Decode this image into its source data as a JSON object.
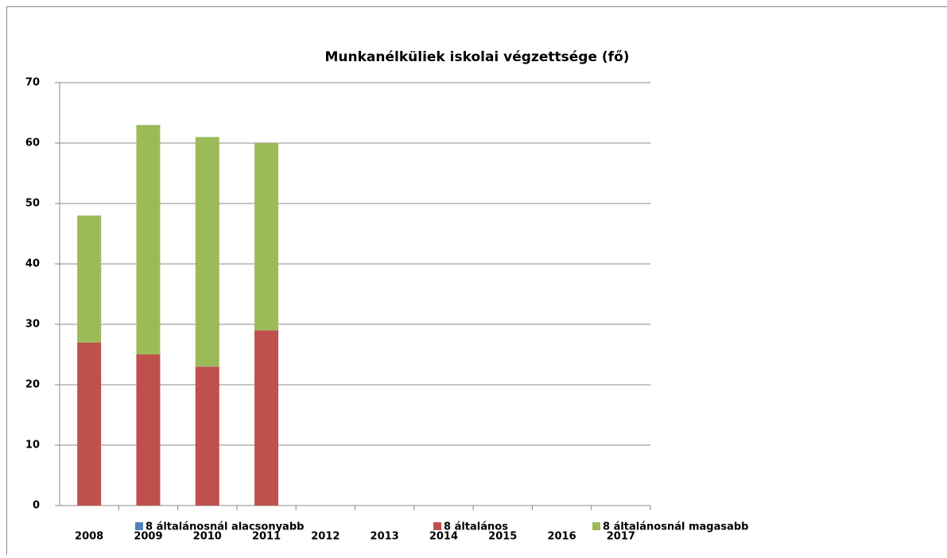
{
  "chart_data": {
    "type": "stacked_bar",
    "title": "Munkanélküliek iskolai végzettsége (fő)",
    "categories": [
      "2008",
      "2009",
      "2010",
      "2011",
      "2012",
      "2013",
      "2014",
      "2015",
      "2016",
      "2017"
    ],
    "series": [
      {
        "name": "8 általánosnál alacsonyabb",
        "color": "#4f81bd",
        "values": [
          0,
          0,
          0,
          0,
          null,
          null,
          null,
          null,
          null,
          null
        ]
      },
      {
        "name": "8 általános",
        "color": "#c0504d",
        "values": [
          27,
          25,
          23,
          29,
          null,
          null,
          null,
          null,
          null,
          null
        ]
      },
      {
        "name": "8 általánosnál magasabb",
        "color": "#9bbb59",
        "values": [
          21,
          38,
          38,
          31,
          null,
          null,
          null,
          null,
          null,
          null
        ]
      }
    ],
    "ylim": [
      0,
      70
    ],
    "yticks": [
      0,
      10,
      20,
      30,
      40,
      50,
      60,
      70
    ],
    "grid": true,
    "legend": "bottom"
  }
}
